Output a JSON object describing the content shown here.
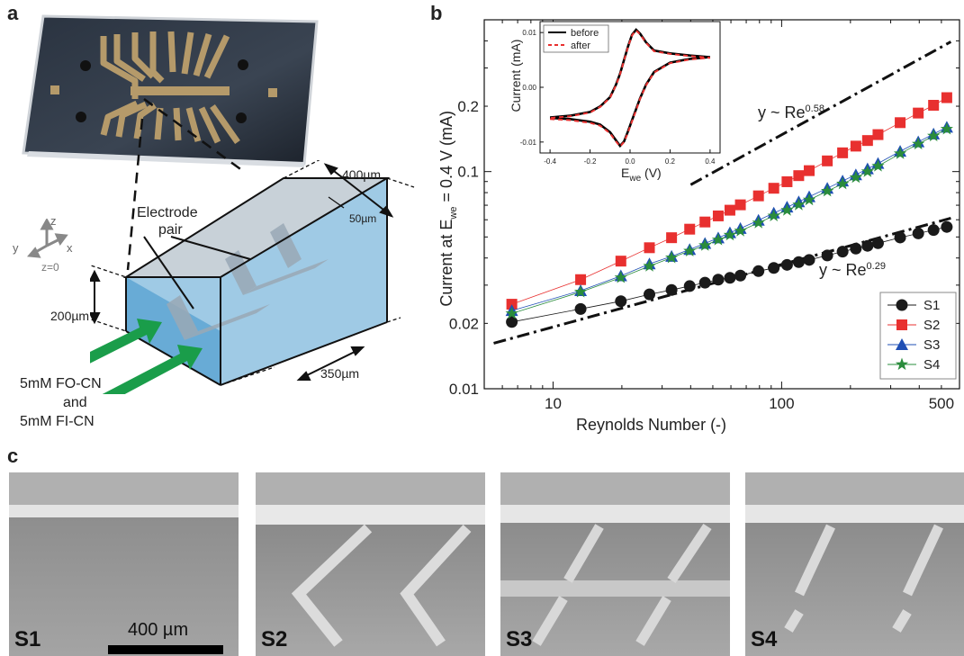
{
  "panel_a": {
    "letter": "a",
    "labels": {
      "width": "400µm",
      "gap": "50µm",
      "height": "200µm",
      "length": "350µm",
      "electrode": "Electrode",
      "pair": "pair",
      "z0": "z=0",
      "axis_z": "z",
      "axis_y": "y",
      "axis_x": "x",
      "inlet1": "5mM FO-CN",
      "inlet2": "and",
      "inlet3": "5mM FI-CN"
    }
  },
  "panel_b": {
    "letter": "b",
    "ylabel_pre": "Current at E",
    "ylabel_sub": "we",
    "ylabel_post": " = 0.4 V (mA)",
    "xlabel": "Reynolds Number (-)",
    "fit1_pre": "y ~ Re",
    "fit1_exp": "0.58",
    "fit2_pre": "y ~ Re",
    "fit2_exp": "0.29",
    "inset": {
      "ylabel": "Current (mA)",
      "xlabel_pre": "E",
      "xlabel_sub": "we",
      "xlabel_post": " (V)",
      "legend": [
        "before",
        "after"
      ]
    }
  },
  "panel_c": {
    "letter": "c",
    "panels": [
      "S1",
      "S2",
      "S3",
      "S4"
    ],
    "scale_bar": "400 µm"
  },
  "chart_data": [
    {
      "type": "scatter",
      "xlabel": "Reynolds Number (-)",
      "ylabel": "Current at Ewe = 0.4 V (mA)",
      "xscale": "log",
      "yscale": "log",
      "xlim": [
        5,
        600
      ],
      "ylim": [
        0.01,
        0.5
      ],
      "xticks": [
        10,
        100,
        500
      ],
      "xtick_labels": [
        "10",
        "100",
        "500"
      ],
      "yticks": [
        0.01,
        0.02,
        0.1,
        0.2
      ],
      "ytick_labels": [
        "0.01",
        "0.02",
        "0.1",
        "0.2"
      ],
      "legend_position": "bottom-right",
      "x": [
        6.6,
        13.2,
        19.8,
        26.4,
        33,
        39.6,
        46.2,
        52.8,
        59.4,
        66,
        79.2,
        92.4,
        105.6,
        118.8,
        132,
        158.4,
        184.8,
        211.2,
        237.6,
        264,
        330,
        396,
        462,
        528
      ],
      "series": [
        {
          "name": "S1",
          "color": "#1a1a1a",
          "marker": "circle",
          "values": [
            0.0203,
            0.0233,
            0.0253,
            0.0272,
            0.0285,
            0.0297,
            0.0308,
            0.0318,
            0.0324,
            0.0332,
            0.0348,
            0.036,
            0.0372,
            0.0383,
            0.0392,
            0.0411,
            0.0428,
            0.0442,
            0.0455,
            0.0468,
            0.0497,
            0.0519,
            0.0538,
            0.0556
          ]
        },
        {
          "name": "S2",
          "color": "#e8302f",
          "marker": "square",
          "values": [
            0.0245,
            0.0318,
            0.0387,
            0.0446,
            0.0496,
            0.0543,
            0.0586,
            0.0625,
            0.0664,
            0.0703,
            0.0773,
            0.0838,
            0.0898,
            0.0958,
            0.101,
            0.112,
            0.122,
            0.131,
            0.139,
            0.148,
            0.168,
            0.186,
            0.202,
            0.219
          ]
        },
        {
          "name": "S3",
          "color": "#1f4fb4",
          "marker": "triangle",
          "values": [
            0.0229,
            0.0283,
            0.0331,
            0.0376,
            0.0407,
            0.0438,
            0.0467,
            0.0495,
            0.0523,
            0.0547,
            0.0597,
            0.0644,
            0.0686,
            0.0726,
            0.0766,
            0.0838,
            0.0905,
            0.0967,
            0.103,
            0.109,
            0.124,
            0.137,
            0.149,
            0.16
          ]
        },
        {
          "name": "S4",
          "color": "#2a8c3c",
          "marker": "star",
          "values": [
            0.0222,
            0.0279,
            0.0325,
            0.0367,
            0.0401,
            0.0431,
            0.0457,
            0.0485,
            0.051,
            0.0533,
            0.0581,
            0.0625,
            0.0664,
            0.0703,
            0.0741,
            0.0813,
            0.0878,
            0.0939,
            0.1,
            0.106,
            0.121,
            0.134,
            0.146,
            0.157
          ]
        }
      ],
      "fits": [
        {
          "label": "y ~ Re^0.58",
          "exponent": 0.58,
          "x": [
            40,
            550
          ],
          "y": [
            0.087,
            0.396
          ]
        },
        {
          "label": "y ~ Re^0.29",
          "exponent": 0.29,
          "x": [
            5.5,
            550
          ],
          "y": [
            0.0162,
            0.061
          ]
        }
      ]
    },
    {
      "type": "line",
      "xlabel": "Ewe (V)",
      "ylabel": "Current (mA)",
      "xlim": [
        -0.45,
        0.45
      ],
      "ylim": [
        -0.012,
        0.012
      ],
      "xticks": [
        -0.4,
        -0.2,
        0.0,
        0.2,
        0.4
      ],
      "xtick_labels": [
        "-0.4",
        "-0.2",
        "0.0",
        "0.2",
        "0.4"
      ],
      "yticks": [
        -0.01,
        0.0,
        0.01
      ],
      "ytick_labels": [
        "-0.01",
        "0.00",
        "0.01"
      ],
      "legend_position": "top-left",
      "series": [
        {
          "name": "before",
          "color": "#000000",
          "style": "solid",
          "x": [
            -0.4,
            -0.3,
            -0.2,
            -0.15,
            -0.1,
            -0.07,
            -0.05,
            -0.03,
            -0.01,
            0.01,
            0.03,
            0.05,
            0.08,
            0.12,
            0.2,
            0.3,
            0.4,
            0.3,
            0.2,
            0.12,
            0.08,
            0.05,
            0.03,
            0.01,
            -0.01,
            -0.03,
            -0.05,
            -0.07,
            -0.1,
            -0.15,
            -0.2,
            -0.3,
            -0.4
          ],
          "y": [
            -0.0056,
            -0.0058,
            -0.0063,
            -0.0068,
            -0.0082,
            -0.0097,
            -0.0107,
            -0.0099,
            -0.008,
            -0.006,
            -0.004,
            -0.002,
            0.0005,
            0.0028,
            0.0045,
            0.0052,
            0.0055,
            0.0058,
            0.0062,
            0.0067,
            0.0082,
            0.0098,
            0.0105,
            0.0096,
            0.0075,
            0.005,
            0.0025,
            0.0005,
            -0.0018,
            -0.0035,
            -0.0045,
            -0.0052,
            -0.0055
          ]
        },
        {
          "name": "after",
          "color": "#e8302f",
          "style": "dashed",
          "x": [
            -0.4,
            -0.3,
            -0.2,
            -0.15,
            -0.1,
            -0.07,
            -0.05,
            -0.03,
            -0.01,
            0.01,
            0.03,
            0.05,
            0.08,
            0.12,
            0.2,
            0.3,
            0.4,
            0.3,
            0.2,
            0.12,
            0.08,
            0.05,
            0.03,
            0.01,
            -0.01,
            -0.03,
            -0.05,
            -0.07,
            -0.1,
            -0.15,
            -0.2,
            -0.3,
            -0.4
          ],
          "y": [
            -0.0058,
            -0.006,
            -0.0065,
            -0.007,
            -0.0084,
            -0.0099,
            -0.0108,
            -0.01,
            -0.0082,
            -0.0062,
            -0.0042,
            -0.0021,
            0.0004,
            0.0027,
            0.0044,
            0.0051,
            0.0054,
            0.0057,
            0.0061,
            0.0066,
            0.0081,
            0.0097,
            0.0104,
            0.0095,
            0.0074,
            0.0049,
            0.0024,
            0.0004,
            -0.0019,
            -0.0036,
            -0.0046,
            -0.0053,
            -0.0056
          ]
        }
      ]
    }
  ]
}
